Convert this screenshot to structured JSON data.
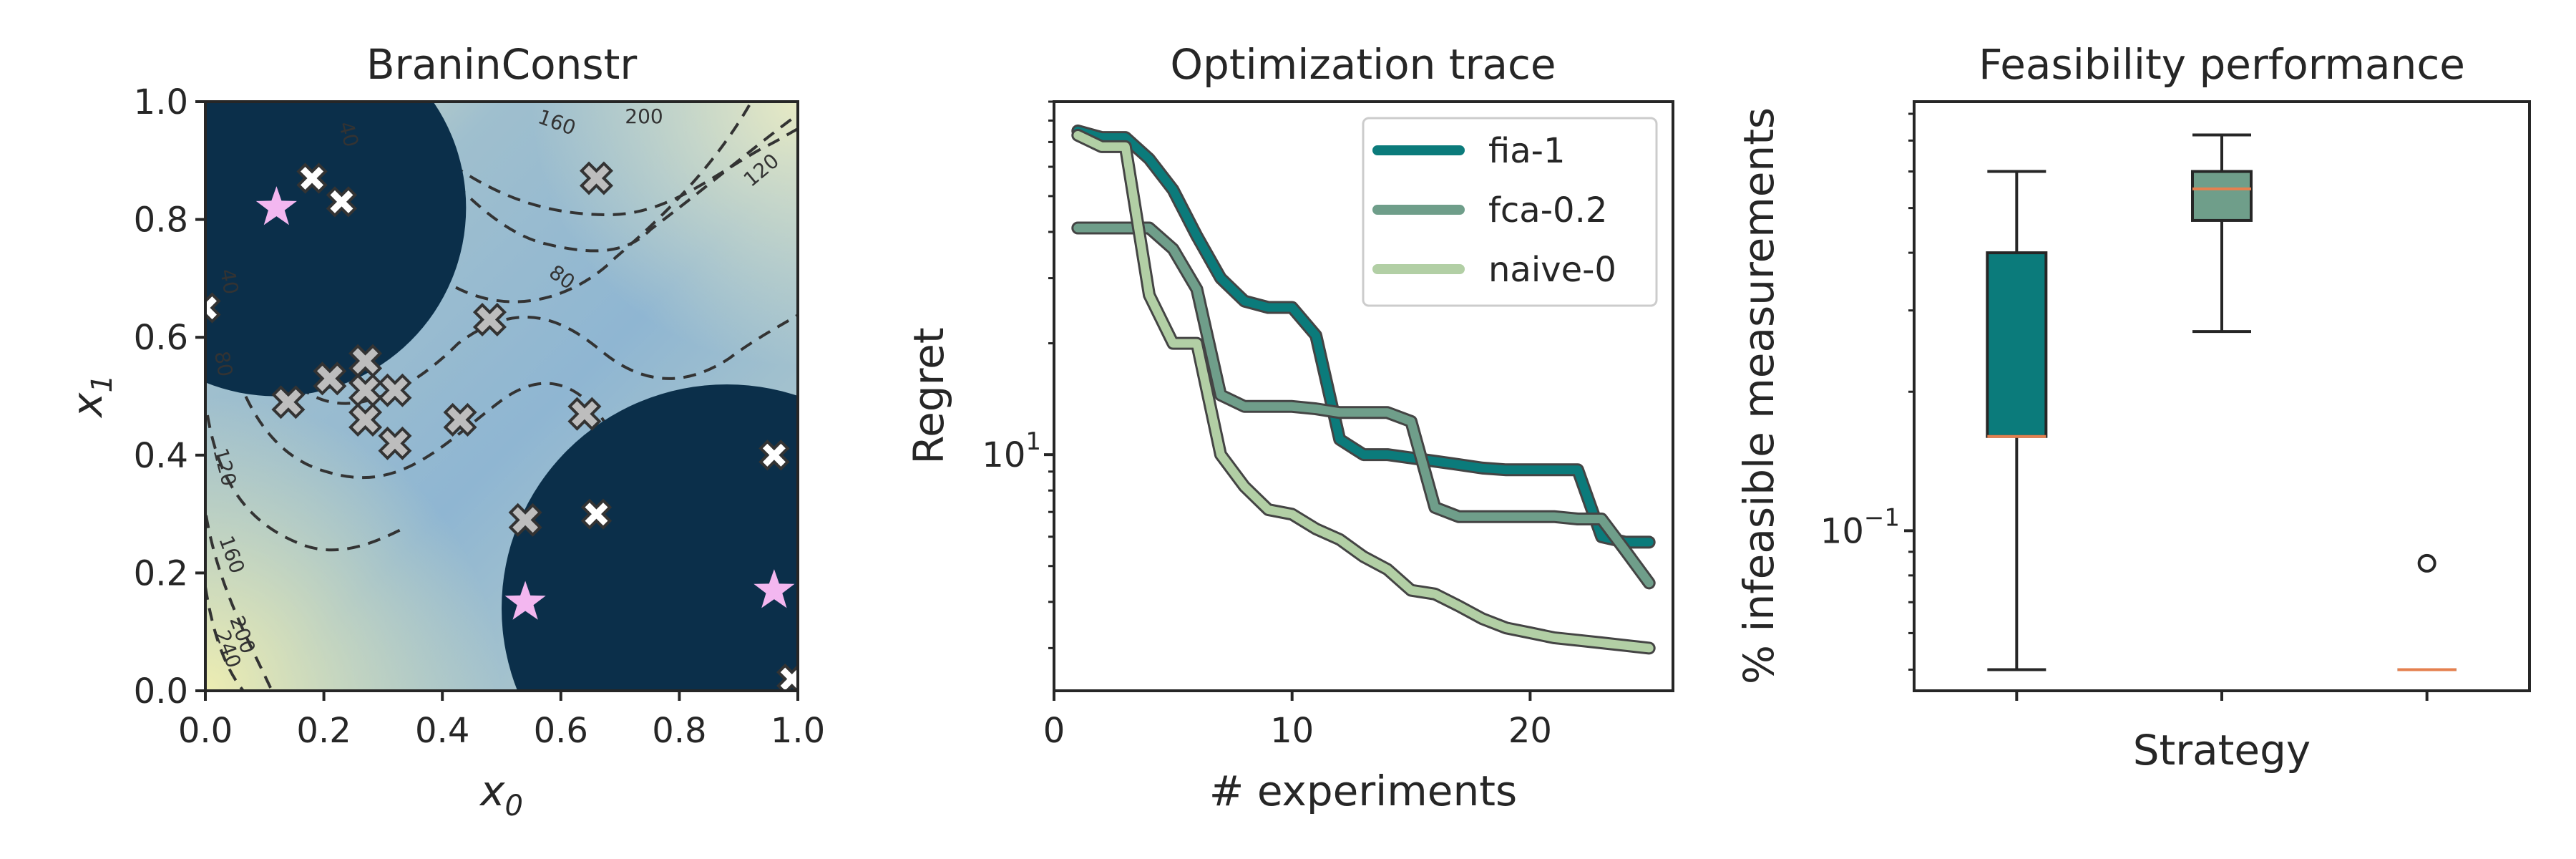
{
  "colors": {
    "fia": "#0b7b7b",
    "fca": "#6f9e8a",
    "naive": "#b2cfa5",
    "infeasible": "#0b2f4a",
    "star": "#f3b7f0",
    "median": "#e5804f"
  },
  "chart_data": [
    {
      "type": "heatmap",
      "title": "BraninConstr",
      "xlabel": "x0",
      "ylabel": "x1",
      "xlim": [
        0,
        1
      ],
      "ylim": [
        0,
        1
      ],
      "xticks": [
        "0.0",
        "0.2",
        "0.4",
        "0.6",
        "0.8",
        "1.0"
      ],
      "yticks": [
        "0.0",
        "0.2",
        "0.4",
        "0.6",
        "0.8",
        "1.0"
      ],
      "contour_levels": [
        "40",
        "80",
        "120",
        "160",
        "200",
        "240"
      ],
      "infeasible_regions": [
        {
          "cx": 0.12,
          "cy": 0.82,
          "r": 0.32
        },
        {
          "cx": 0.88,
          "cy": 0.14,
          "r": 0.38
        }
      ],
      "feasible_samples": [
        [
          0.14,
          0.49
        ],
        [
          0.21,
          0.53
        ],
        [
          0.27,
          0.56
        ],
        [
          0.27,
          0.51
        ],
        [
          0.27,
          0.46
        ],
        [
          0.32,
          0.51
        ],
        [
          0.32,
          0.42
        ],
        [
          0.43,
          0.46
        ],
        [
          0.48,
          0.63
        ],
        [
          0.54,
          0.29
        ],
        [
          0.64,
          0.47
        ],
        [
          0.66,
          0.87
        ]
      ],
      "infeasible_samples": [
        [
          0.18,
          0.87
        ],
        [
          0.23,
          0.83
        ],
        [
          0.66,
          0.3
        ],
        [
          0.96,
          0.4
        ],
        [
          0.99,
          0.02
        ],
        [
          0.0,
          0.65
        ]
      ],
      "optima": [
        [
          0.12,
          0.82
        ],
        [
          0.54,
          0.15
        ],
        [
          0.96,
          0.17
        ]
      ],
      "grid": false
    },
    {
      "type": "line",
      "title": "Optimization trace",
      "xlabel": "# experiments",
      "ylabel": "Regret",
      "xlim": [
        0,
        26
      ],
      "ylim_log": [
        2.3,
        90
      ],
      "yscale": "log",
      "xticks": [
        0,
        10,
        20
      ],
      "ytick_label": "10",
      "ytick_exp": "1",
      "legend_position": "top-right",
      "series": [
        {
          "name": "fia-1",
          "color_key": "fia",
          "x": [
            1,
            2,
            3,
            4,
            5,
            6,
            7,
            8,
            9,
            10,
            11,
            12,
            13,
            14,
            15,
            16,
            17,
            18,
            19,
            20,
            21,
            22,
            23,
            24,
            25
          ],
          "values": [
            75,
            72,
            72,
            63,
            52,
            39,
            30,
            26,
            25,
            25,
            21,
            11,
            10,
            10,
            9.8,
            9.6,
            9.4,
            9.2,
            9.1,
            9.1,
            9.1,
            9.1,
            6,
            5.8,
            5.8
          ]
        },
        {
          "name": "fca-0.2",
          "color_key": "fca",
          "x": [
            1,
            2,
            3,
            4,
            5,
            6,
            7,
            8,
            9,
            10,
            11,
            12,
            13,
            14,
            15,
            16,
            17,
            18,
            19,
            20,
            21,
            22,
            23,
            24,
            25
          ],
          "values": [
            41,
            41,
            41,
            41,
            36,
            28,
            14.5,
            13.5,
            13.5,
            13.5,
            13.3,
            13,
            13,
            13,
            12.3,
            7.2,
            6.8,
            6.8,
            6.8,
            6.8,
            6.8,
            6.7,
            6.7,
            5.5,
            4.5
          ]
        },
        {
          "name": "naive-0",
          "color_key": "naive",
          "x": [
            1,
            2,
            3,
            4,
            5,
            6,
            7,
            8,
            9,
            10,
            11,
            12,
            13,
            14,
            15,
            16,
            17,
            18,
            19,
            20,
            21,
            22,
            23,
            24,
            25
          ],
          "values": [
            73,
            68,
            68,
            27,
            20,
            20,
            10,
            8.2,
            7.1,
            6.9,
            6.3,
            5.9,
            5.3,
            4.9,
            4.3,
            4.2,
            3.9,
            3.6,
            3.4,
            3.3,
            3.2,
            3.15,
            3.1,
            3.05,
            3.0
          ]
        }
      ]
    },
    {
      "type": "box",
      "title": "Feasibility performance",
      "xlabel": "Strategy",
      "ylabel": "% infeasible measurements",
      "yscale": "log",
      "ylim_log": [
        0.045,
        0.85
      ],
      "ytick_label": "10",
      "ytick_exp": "−1",
      "boxes": [
        {
          "color_key": "fia",
          "min": 0.05,
          "q1": 0.16,
          "median": 0.16,
          "q3": 0.4,
          "max": 0.6,
          "outliers": []
        },
        {
          "color_key": "fca",
          "min": 0.27,
          "q1": 0.47,
          "median": 0.55,
          "q3": 0.6,
          "max": 0.72,
          "outliers": []
        },
        {
          "color_key": "naive",
          "min": 0.05,
          "q1": 0.05,
          "median": 0.05,
          "q3": 0.05,
          "max": 0.05,
          "outliers": [
            0.085
          ]
        }
      ]
    }
  ]
}
